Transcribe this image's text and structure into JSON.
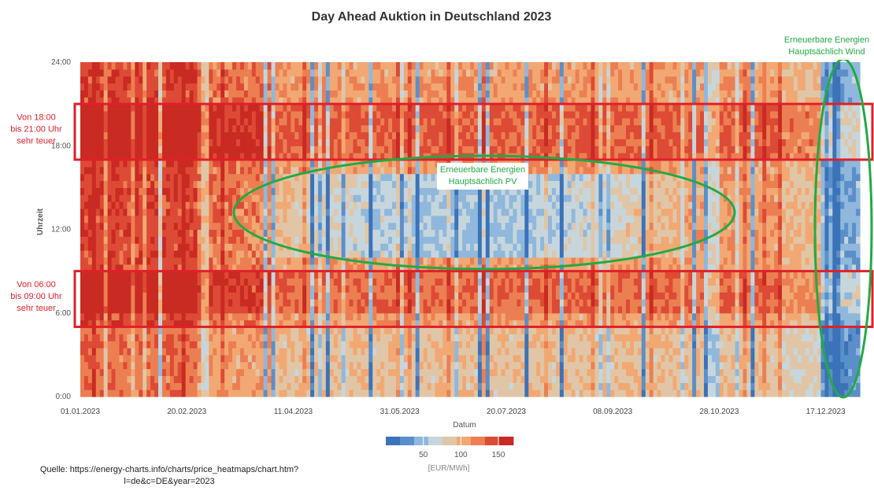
{
  "chart_data": {
    "type": "heatmap",
    "title": "Day Ahead Auktion in Deutschland 2023",
    "xlabel": "Datum",
    "ylabel": "Uhrzeit",
    "x_range": [
      "01.01.2023",
      "31.12.2023"
    ],
    "x_ticks": [
      "01.01.2023",
      "20.02.2023",
      "11.04.2023",
      "31.05.2023",
      "20.07.2023",
      "08.09.2023",
      "28.10.2023",
      "17.12.2023"
    ],
    "y_range": [
      "0:00",
      "24:00"
    ],
    "y_ticks": [
      "0:00",
      "6:00",
      "12:00",
      "18:00",
      "24:00"
    ],
    "colorbar": {
      "ticks": [
        50,
        100,
        150
      ],
      "unit": "[EUR/MWh]",
      "colors": [
        "#3b73b9",
        "#5b8fc9",
        "#8fb8dc",
        "#c7d6dc",
        "#e0c6a6",
        "#f2a873",
        "#ec7f52",
        "#dd4a35",
        "#c92a22"
      ],
      "range": [
        0,
        170
      ]
    },
    "annotations": [
      {
        "lines": [
          "Von 18:00",
          "bis 21:00 Uhr",
          "sehr teuer"
        ],
        "color": "#e0202a",
        "hours": [
          17,
          21
        ]
      },
      {
        "lines": [
          "Von 06:00",
          "bis 09:00 Uhr",
          "sehr teuer"
        ],
        "color": "#e0202a",
        "hours": [
          5,
          9
        ]
      },
      {
        "lines": [
          "Erneuerbare Energien",
          "Hauptsächlich PV"
        ],
        "color": "#22aa44"
      },
      {
        "lines": [
          "Erneuerbare Energien",
          "Hauptsächlich Wind"
        ],
        "color": "#22aa44"
      }
    ]
  },
  "source": {
    "line1": "Quelle: https://energy-charts.info/charts/price_heatmaps/chart.htm?",
    "line2": "l=de&c=DE&year=2023"
  }
}
